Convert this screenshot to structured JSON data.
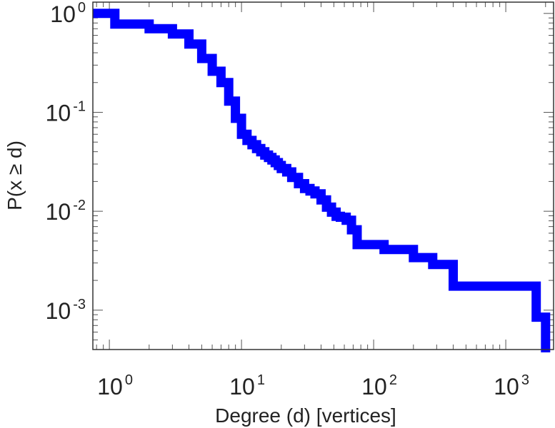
{
  "chart_data": {
    "type": "line",
    "title": "",
    "xlabel": "Degree (d) [vertices]",
    "ylabel": "P(x ≥ d)",
    "x_scale": "log",
    "y_scale": "log",
    "xlim": [
      0.75,
      2300
    ],
    "ylim": [
      0.0004,
      1.3
    ],
    "grid": false,
    "x_ticks": [
      {
        "value": 1,
        "base": "10",
        "exp": "0"
      },
      {
        "value": 10,
        "base": "10",
        "exp": "1"
      },
      {
        "value": 100,
        "base": "10",
        "exp": "2"
      },
      {
        "value": 1000,
        "base": "10",
        "exp": "3"
      }
    ],
    "y_ticks": [
      {
        "value": 1,
        "base": "10",
        "exp": "0"
      },
      {
        "value": 0.1,
        "base": "10",
        "exp": "-1"
      },
      {
        "value": 0.01,
        "base": "10",
        "exp": "-2"
      },
      {
        "value": 0.001,
        "base": "10",
        "exp": "-3"
      }
    ],
    "series": [
      {
        "color": "#0000ff",
        "step": true,
        "x": [
          0.75,
          1.1,
          2.0,
          3.0,
          4.0,
          5.0,
          6.0,
          7.0,
          8.0,
          9.0,
          10.0,
          11.0,
          12.0,
          13.0,
          14.0,
          15.0,
          16.0,
          17.0,
          18.0,
          19.0,
          20.0,
          22.0,
          24.0,
          27.0,
          30.0,
          33.0,
          36.0,
          40.0,
          44.0,
          48.0,
          52.0,
          56.0,
          62.0,
          68.0,
          75.0,
          120.0,
          200.0,
          280.0,
          400.0,
          1400.0,
          1700.0,
          2000.0
        ],
        "y": [
          1.0,
          0.78,
          0.7,
          0.62,
          0.49,
          0.35,
          0.26,
          0.2,
          0.13,
          0.087,
          0.06,
          0.052,
          0.047,
          0.043,
          0.04,
          0.037,
          0.035,
          0.033,
          0.031,
          0.029,
          0.027,
          0.025,
          0.022,
          0.019,
          0.017,
          0.016,
          0.015,
          0.013,
          0.011,
          0.0098,
          0.0089,
          0.0087,
          0.0081,
          0.0065,
          0.0046,
          0.0041,
          0.0034,
          0.0029,
          0.00175,
          0.00175,
          0.00085,
          0.00055
        ]
      }
    ]
  }
}
